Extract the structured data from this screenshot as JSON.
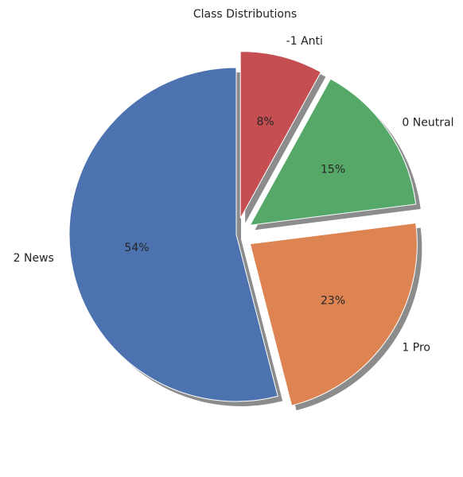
{
  "chart_data": {
    "type": "pie",
    "title": "Class Distributions",
    "labels": [
      "2 News",
      "1 Pro",
      "0 Neutral",
      "-1 Anti"
    ],
    "values": [
      54,
      23,
      15,
      8
    ],
    "autopct": [
      "54%",
      "23%",
      "15%",
      "8%"
    ],
    "colors": [
      "#4c72b0",
      "#dd8452",
      "#55a868",
      "#c44e52"
    ],
    "explode": [
      0,
      0.1,
      0.1,
      0.1
    ],
    "shadow": true,
    "start_angle_deg": 90,
    "direction": "counterclockwise",
    "legend": false
  }
}
